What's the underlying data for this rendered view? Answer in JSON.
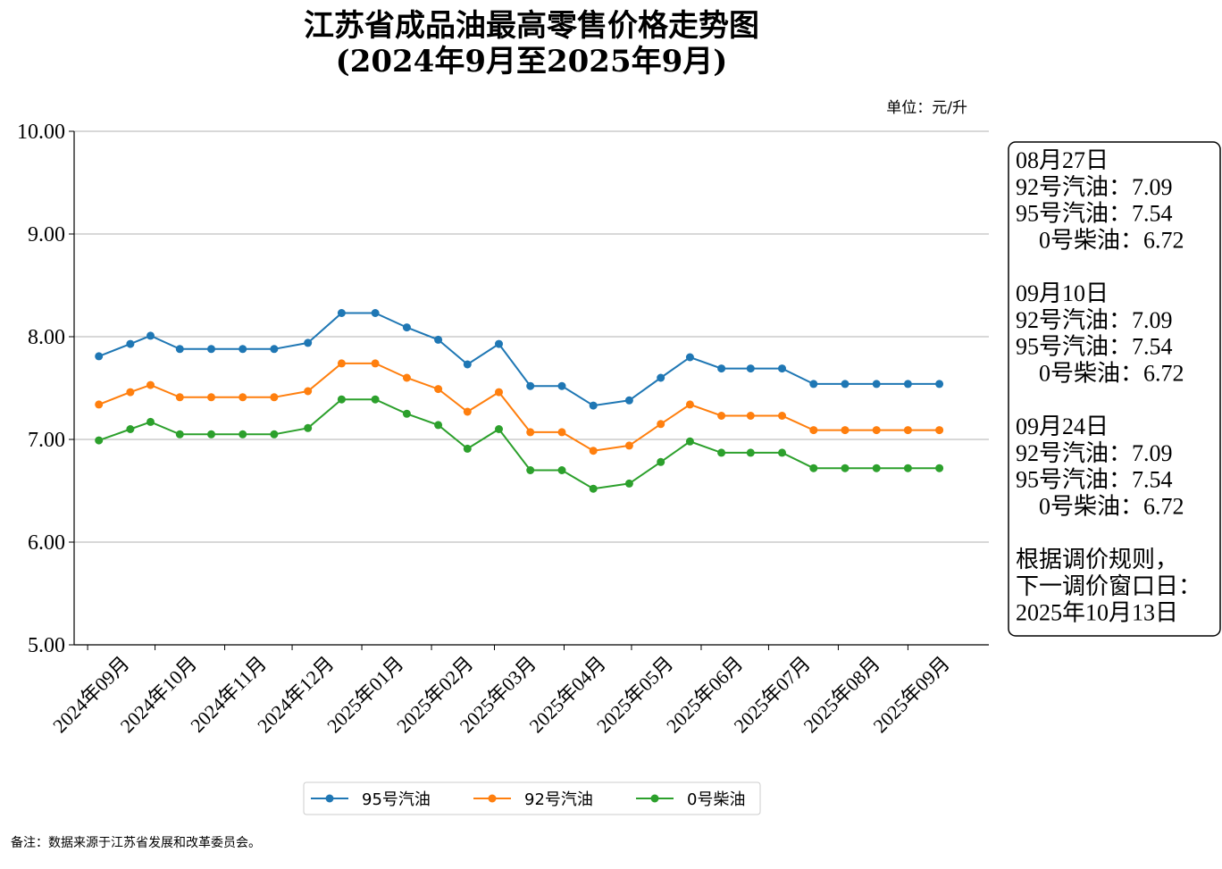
{
  "chart_data": {
    "type": "line",
    "title": "江苏省成品油最高零售价格走势图",
    "subtitle": "(2024年9月至2025年9月)",
    "unit": "单位：元/升",
    "ylim": [
      5.0,
      10.0
    ],
    "y_ticks": [
      "5.00",
      "6.00",
      "7.00",
      "8.00",
      "9.00",
      "10.00"
    ],
    "x_ticks": [
      "2024年09月",
      "2024年10月",
      "2024年11月",
      "2024年12月",
      "2025年01月",
      "2025年02月",
      "2025年03月",
      "2025年04月",
      "2025年05月",
      "2025年06月",
      "2025年07月",
      "2025年08月",
      "2025年09月"
    ],
    "x_range": [
      "2024-08-26",
      "2025-10-07"
    ],
    "grid": "horizontal",
    "legend_position": "bottom-center",
    "x": [
      "2024-09-06",
      "2024-09-20",
      "2024-09-29",
      "2024-10-12",
      "2024-10-26",
      "2024-11-09",
      "2024-11-23",
      "2024-12-08",
      "2024-12-23",
      "2025-01-07",
      "2025-01-21",
      "2025-02-04",
      "2025-02-17",
      "2025-03-03",
      "2025-03-17",
      "2025-03-31",
      "2025-04-14",
      "2025-04-30",
      "2025-05-14",
      "2025-05-27",
      "2025-06-10",
      "2025-06-23",
      "2025-07-07",
      "2025-07-21",
      "2025-08-04",
      "2025-08-18",
      "2025-09-01",
      "2025-09-15"
    ],
    "series": [
      {
        "name": "95号汽油",
        "color": "#1f77b4",
        "values": [
          7.81,
          7.93,
          8.01,
          7.88,
          7.88,
          7.88,
          7.88,
          7.94,
          8.23,
          8.23,
          8.09,
          7.97,
          7.73,
          7.93,
          7.52,
          7.52,
          7.33,
          7.38,
          7.6,
          7.8,
          7.69,
          7.69,
          7.69,
          7.54,
          7.54,
          7.54,
          7.54,
          7.54
        ]
      },
      {
        "name": "92号汽油",
        "color": "#ff7f0e",
        "values": [
          7.34,
          7.46,
          7.53,
          7.41,
          7.41,
          7.41,
          7.41,
          7.47,
          7.74,
          7.74,
          7.6,
          7.49,
          7.27,
          7.46,
          7.07,
          7.07,
          6.89,
          6.94,
          7.15,
          7.34,
          7.23,
          7.23,
          7.23,
          7.09,
          7.09,
          7.09,
          7.09,
          7.09
        ]
      },
      {
        "name": "0号柴油",
        "color": "#2ca02c",
        "values": [
          6.99,
          7.1,
          7.17,
          7.05,
          7.05,
          7.05,
          7.05,
          7.11,
          7.39,
          7.39,
          7.25,
          7.14,
          6.91,
          7.1,
          6.7,
          6.7,
          6.52,
          6.57,
          6.78,
          6.98,
          6.87,
          6.87,
          6.87,
          6.72,
          6.72,
          6.72,
          6.72,
          6.72
        ]
      }
    ]
  },
  "info_box": {
    "lines": [
      "08月27日",
      "92号汽油：7.09",
      "95号汽油：7.54",
      "  0号柴油：6.72",
      "",
      "09月10日",
      "92号汽油：7.09",
      "95号汽油：7.54",
      "  0号柴油：6.72",
      "",
      "09月24日",
      "92号汽油：7.09",
      "95号汽油：7.54",
      "  0号柴油：6.72",
      "",
      "根据调价规则，",
      "下一调价窗口日：",
      "2025年10月13日"
    ]
  },
  "footnote": "备注：数据来源于江苏省发展和改革委员会。"
}
